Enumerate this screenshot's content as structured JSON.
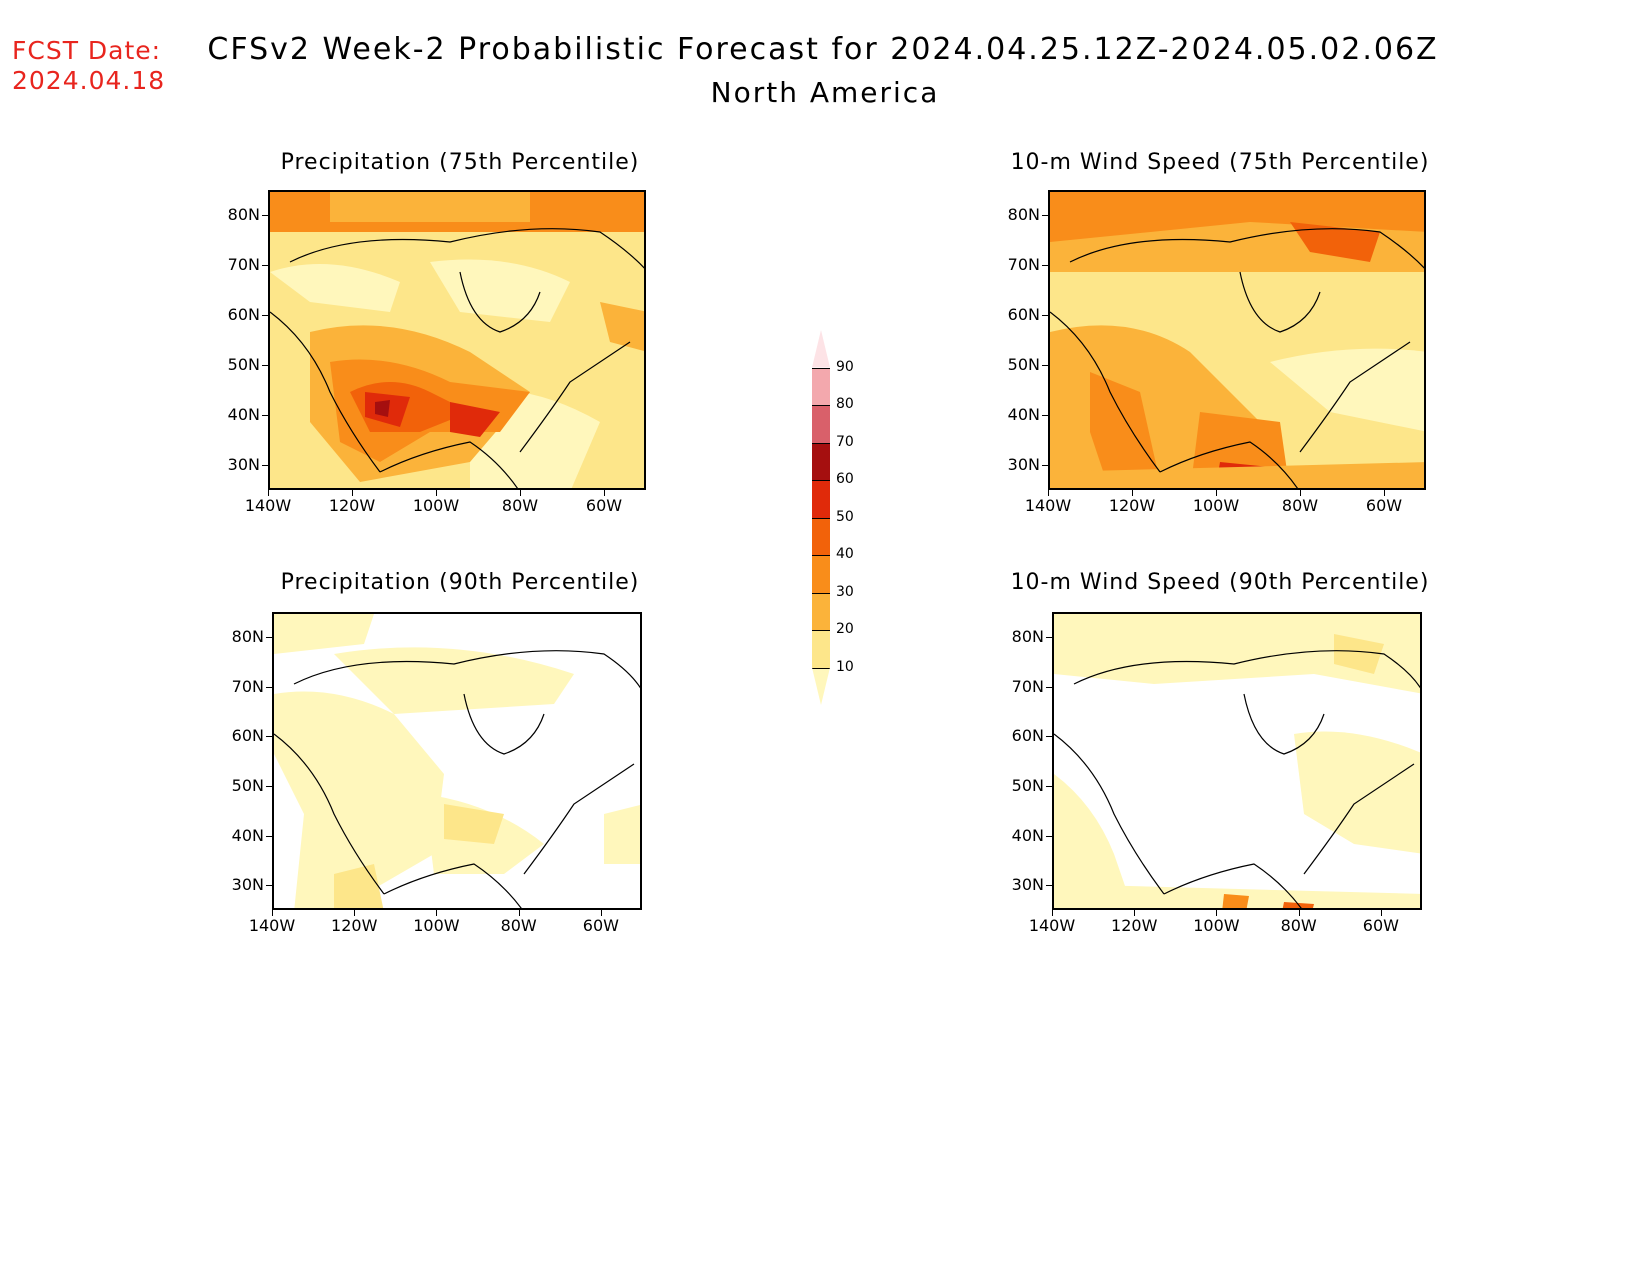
{
  "header": {
    "fcst_label": "FCST Date:",
    "fcst_date": "2024.04.18",
    "title": "CFSv2 Week-2 Probabilistic Forecast for 2024.04.25.12Z-2024.05.02.06Z",
    "subtitle": "North America"
  },
  "axes": {
    "lat_labels": [
      "80N",
      "70N",
      "60N",
      "50N",
      "40N",
      "30N"
    ],
    "lon_labels": [
      "140W",
      "120W",
      "100W",
      "80W",
      "60W"
    ]
  },
  "panels": [
    {
      "title": "Precipitation (75th Percentile)",
      "intensity": "high"
    },
    {
      "title": "10-m Wind Speed (75th Percentile)",
      "intensity": "high"
    },
    {
      "title": "Precipitation (90th Percentile)",
      "intensity": "low"
    },
    {
      "title": "10-m Wind Speed (90th Percentile)",
      "intensity": "low"
    }
  ],
  "colorbar": {
    "levels": [
      "10",
      "20",
      "30",
      "40",
      "50",
      "60",
      "70",
      "80",
      "90"
    ],
    "colors": [
      "#fff7bc",
      "#fde68a",
      "#fbb33a",
      "#f98d1a",
      "#f2620a",
      "#e02a0a",
      "#a50f0f",
      "#d9606a",
      "#f3a8ad",
      "#fde3e6"
    ]
  }
}
